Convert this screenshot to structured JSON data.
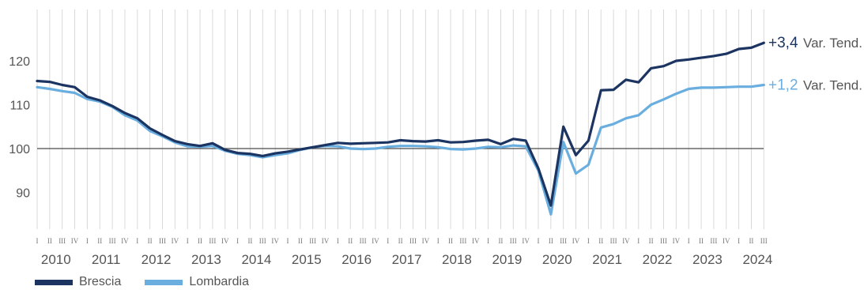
{
  "chart_data": {
    "type": "line",
    "title": "",
    "xlabel": "",
    "ylabel": "",
    "ylim": [
      80,
      130
    ],
    "yticks": [
      90,
      100,
      110,
      120
    ],
    "reference_line": 100,
    "years": [
      "2010",
      "2011",
      "2012",
      "2013",
      "2014",
      "2015",
      "2016",
      "2017",
      "2018",
      "2019",
      "2020",
      "2021",
      "2022",
      "2023",
      "2024"
    ],
    "quarters": [
      "I",
      "II",
      "III",
      "IV"
    ],
    "series": [
      {
        "name": "Brescia",
        "color": "#1c3461",
        "end_label": "+3,4",
        "end_text": "Var. Tend.",
        "values": [
          115.4,
          115.2,
          114.5,
          114.0,
          111.8,
          111.0,
          109.7,
          108.1,
          106.9,
          104.6,
          103.1,
          101.7,
          101.0,
          100.6,
          101.2,
          99.7,
          99.0,
          98.8,
          98.3,
          98.9,
          99.3,
          99.8,
          100.3,
          100.8,
          101.3,
          101.1,
          101.2,
          101.3,
          101.4,
          101.9,
          101.7,
          101.6,
          101.9,
          101.4,
          101.5,
          101.8,
          102.0,
          101.0,
          102.2,
          101.8,
          95.5,
          87.0,
          105.0,
          98.5,
          101.8,
          113.3,
          113.4,
          115.7,
          115.1,
          118.3,
          118.8,
          120.0,
          120.3,
          120.7,
          121.1,
          121.6,
          122.7,
          123.0,
          124.1
        ]
      },
      {
        "name": "Lombardia",
        "color": "#6aaee0",
        "end_label": "+1,2",
        "end_text": "Var. Tend.",
        "values": [
          114.0,
          113.6,
          113.1,
          112.7,
          111.3,
          110.7,
          109.5,
          107.6,
          106.4,
          104.0,
          102.8,
          101.4,
          100.5,
          100.4,
          100.6,
          99.5,
          98.8,
          98.5,
          98.0,
          98.5,
          98.9,
          99.7,
          100.3,
          100.6,
          100.5,
          100.0,
          99.9,
          100.0,
          100.4,
          100.6,
          100.6,
          100.5,
          100.3,
          99.9,
          99.8,
          100.0,
          100.4,
          100.3,
          100.7,
          100.5,
          95.0,
          85.0,
          101.5,
          94.3,
          96.3,
          104.8,
          105.6,
          106.9,
          107.6,
          110.0,
          111.2,
          112.5,
          113.6,
          113.9,
          113.9,
          114.0,
          114.1,
          114.1,
          114.5
        ]
      }
    ],
    "legend_position": "bottom-left",
    "grid": true
  }
}
